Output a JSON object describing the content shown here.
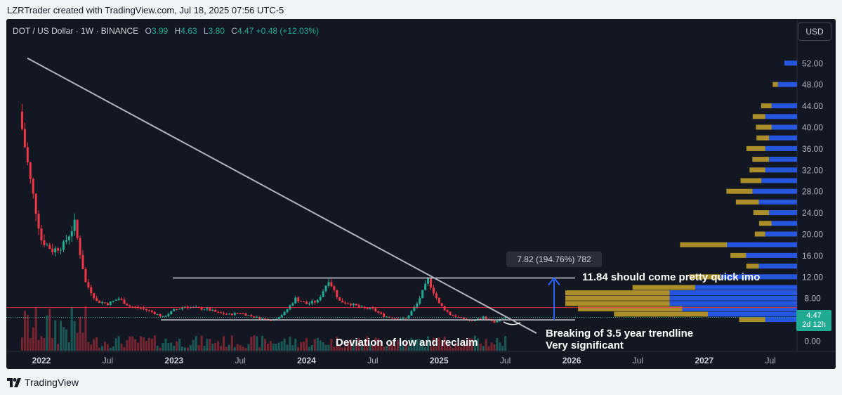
{
  "attribution": "LZRTrader created with TradingView.com, Jul 18, 2025 07:56 UTC-5",
  "legend": {
    "symbol": "DOT / US Dollar · 1W · BINANCE",
    "open_key": "O",
    "open": "3.99",
    "high_key": "H",
    "high": "4.63",
    "low_key": "L",
    "low": "3.80",
    "close_key": "C",
    "close": "4.47",
    "change": "+0.48 (+12.03%)"
  },
  "currency_button": "USD",
  "last_price": {
    "value": "4.47",
    "countdown": "2d 12h"
  },
  "footer": {
    "brand": "TradingView",
    "icon": "tradingview-logo-icon"
  },
  "colors": {
    "up": "#22ab94",
    "down": "#f23645",
    "trendline": "#b2b5be",
    "resistance_line": "#f23645",
    "target_arrow": "#2962ff",
    "volume_profile_up": "#2962ff",
    "volume_profile_down": "#c7a22c"
  },
  "chart_data": {
    "type": "candlestick",
    "title": "DOT / US Dollar · 1W · BINANCE",
    "x_ticks": [
      "2022",
      "Jul",
      "2023",
      "Jul",
      "2024",
      "Jul",
      "2025",
      "Jul",
      "2026",
      "Jul",
      "2027",
      "Jul"
    ],
    "y_ticks": [
      "52.00",
      "48.00",
      "44.00",
      "40.00",
      "36.00",
      "32.00",
      "28.00",
      "24.00",
      "20.00",
      "16.00",
      "12.00",
      "8.00",
      "4.00",
      "0.00"
    ],
    "ylim": [
      0,
      54
    ],
    "y_scale": "logarithmic-style",
    "grid": false,
    "price_path": [
      [
        "2021-11",
        43
      ],
      [
        "2021-12",
        30
      ],
      [
        "2022-01",
        19
      ],
      [
        "2022-02",
        17
      ],
      [
        "2022-03",
        18
      ],
      [
        "2022-04",
        22
      ],
      [
        "2022-05",
        11
      ],
      [
        "2022-06",
        7.5
      ],
      [
        "2022-07",
        7
      ],
      [
        "2022-08",
        8
      ],
      [
        "2022-09",
        6.5
      ],
      [
        "2022-10",
        6.2
      ],
      [
        "2022-11",
        5.5
      ],
      [
        "2022-12",
        4.5
      ],
      [
        "2023-01",
        5.8
      ],
      [
        "2023-02",
        6.5
      ],
      [
        "2023-03",
        6.2
      ],
      [
        "2023-04",
        6
      ],
      [
        "2023-05",
        5.3
      ],
      [
        "2023-06",
        5
      ],
      [
        "2023-07",
        5.3
      ],
      [
        "2023-08",
        4.7
      ],
      [
        "2023-09",
        4.2
      ],
      [
        "2023-10",
        4
      ],
      [
        "2023-11",
        5.3
      ],
      [
        "2023-12",
        8
      ],
      [
        "2024-01",
        7
      ],
      [
        "2024-02",
        7.5
      ],
      [
        "2024-03",
        11.5
      ],
      [
        "2024-04",
        7.5
      ],
      [
        "2024-05",
        7
      ],
      [
        "2024-06",
        6.2
      ],
      [
        "2024-07",
        6
      ],
      [
        "2024-08",
        4.7
      ],
      [
        "2024-09",
        4.3
      ],
      [
        "2024-10",
        4.2
      ],
      [
        "2024-11",
        7
      ],
      [
        "2024-12",
        11.5
      ],
      [
        "2025-01",
        7
      ],
      [
        "2025-02",
        5
      ],
      [
        "2025-03",
        4.3
      ],
      [
        "2025-04",
        3.8
      ],
      [
        "2025-05",
        4.5
      ],
      [
        "2025-06",
        3.5
      ],
      [
        "2025-07",
        4.47
      ]
    ],
    "levels": {
      "support": 4.0,
      "resistance": 11.84,
      "red_line": 6.3,
      "current": 4.47
    },
    "measure_label": "7.82 (194.76%) 782",
    "annotations": {
      "target": "11.84 should come pretty quick imo",
      "deviation": "Deviation of low and reclaim",
      "breaking_line1": "Breaking of 3.5 year trendline",
      "breaking_line2": "Very significant"
    },
    "volume_profile": [
      {
        "price": 52,
        "up": 0.1,
        "down": 0.0
      },
      {
        "price": 48,
        "up": 0.15,
        "down": 0.05
      },
      {
        "price": 44,
        "up": 0.2,
        "down": 0.1
      },
      {
        "price": 42,
        "up": 0.25,
        "down": 0.12
      },
      {
        "price": 40,
        "up": 0.2,
        "down": 0.15
      },
      {
        "price": 38,
        "up": 0.22,
        "down": 0.12
      },
      {
        "price": 36,
        "up": 0.25,
        "down": 0.18
      },
      {
        "price": 34,
        "up": 0.22,
        "down": 0.16
      },
      {
        "price": 32,
        "up": 0.25,
        "down": 0.15
      },
      {
        "price": 30,
        "up": 0.28,
        "down": 0.2
      },
      {
        "price": 28,
        "up": 0.35,
        "down": 0.25
      },
      {
        "price": 26,
        "up": 0.3,
        "down": 0.22
      },
      {
        "price": 24,
        "up": 0.22,
        "down": 0.15
      },
      {
        "price": 22,
        "up": 0.2,
        "down": 0.12
      },
      {
        "price": 20,
        "up": 0.25,
        "down": 0.1
      },
      {
        "price": 18,
        "up": 0.55,
        "down": 0.45
      },
      {
        "price": 16,
        "up": 0.4,
        "down": 0.15
      },
      {
        "price": 14,
        "up": 0.3,
        "down": 0.12
      },
      {
        "price": 12,
        "up": 0.6,
        "down": 0.3
      },
      {
        "price": 10,
        "up": 0.8,
        "down": 0.6
      },
      {
        "price": 9,
        "up": 1.0,
        "down": 1.0
      },
      {
        "price": 8,
        "up": 1.0,
        "down": 1.0
      },
      {
        "price": 7,
        "up": 1.0,
        "down": 1.0
      },
      {
        "price": 6,
        "up": 0.9,
        "down": 1.0
      },
      {
        "price": 5,
        "up": 0.7,
        "down": 0.9
      },
      {
        "price": 4,
        "up": 0.25,
        "down": 0.25
      }
    ]
  }
}
